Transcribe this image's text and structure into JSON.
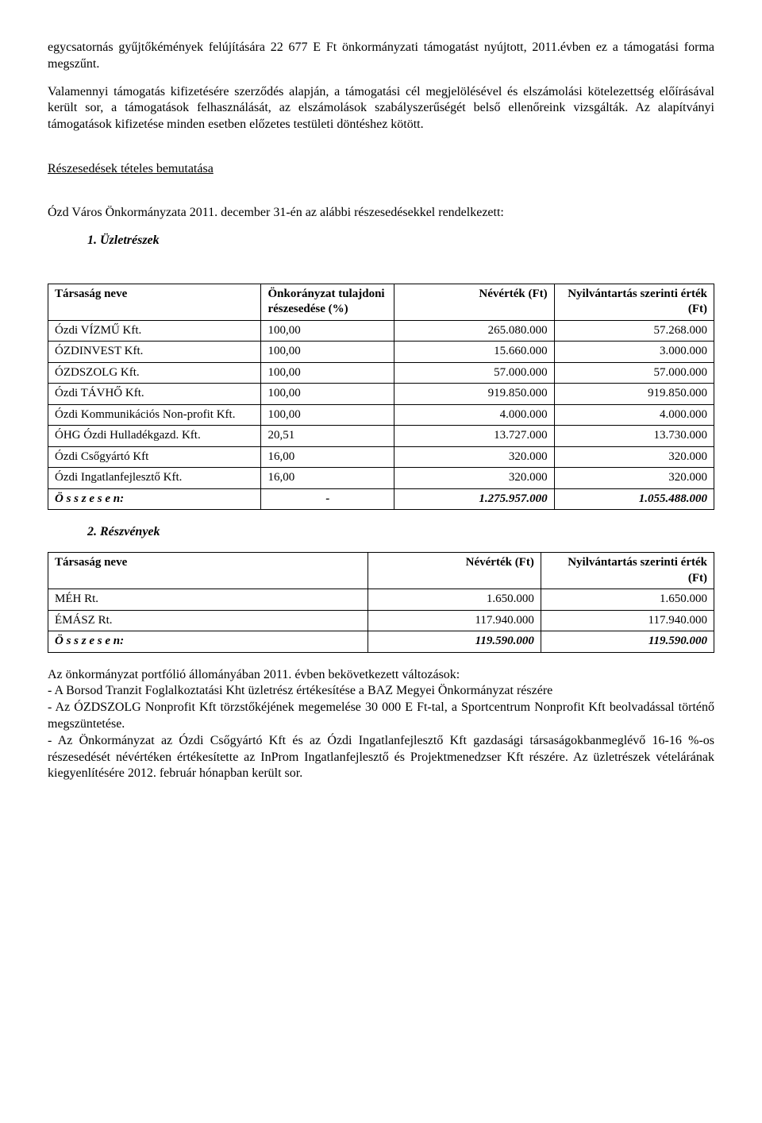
{
  "para1": "egycsatornás gyűjtőkémények felújítására  22 677 E Ft önkormányzati támogatást nyújtott, 2011.évben ez a támogatási forma megszűnt.",
  "para2": "Valamennyi támogatás kifizetésére szerződés alapján, a támogatási cél megjelölésével és elszámolási kötelezettség előírásával került sor, a támogatások felhasználását, az elszámolások szabályszerűségét belső ellenőreink vizsgálták. Az alapítványi támogatások kifizetése minden esetben előzetes testületi döntéshez kötött.",
  "section_title": "Részesedések tételes bemutatása",
  "para3": "Ózd Város Önkormányzata 2011. december 31-én az alábbi részesedésekkel rendelkezett:",
  "list1": {
    "num": "1.",
    "label": "Üzletrészek"
  },
  "table1": {
    "headers": {
      "company": "Társaság neve",
      "share": "Önkorányzat tulajdoni részesedése (%)",
      "nominal": "Névérték (Ft)",
      "book": "Nyilvántartás szerinti érték (Ft)"
    },
    "rows": [
      {
        "company": "Ózdi VÍZMŰ Kft.",
        "share": "100,00",
        "nominal": "265.080.000",
        "book": "57.268.000"
      },
      {
        "company": "ÓZDINVEST Kft.",
        "share": "100,00",
        "nominal": "15.660.000",
        "book": "3.000.000"
      },
      {
        "company": "ÓZDSZOLG Kft.",
        "share": "100,00",
        "nominal": "57.000.000",
        "book": "57.000.000"
      },
      {
        "company": "Ózdi TÁVHŐ Kft.",
        "share": "100,00",
        "nominal": "919.850.000",
        "book": "919.850.000"
      },
      {
        "company": "Ózdi Kommunikációs Non-profit Kft.",
        "share": "100,00",
        "nominal": "4.000.000",
        "book": "4.000.000"
      },
      {
        "company": "ÓHG Ózdi Hulladékgazd. Kft.",
        "share": "20,51",
        "nominal": "13.727.000",
        "book": "13.730.000"
      },
      {
        "company": "Ózdi Csőgyártó Kft",
        "share": "16,00",
        "nominal": "320.000",
        "book": "320.000"
      },
      {
        "company": "Ózdi Ingatlanfejlesztő Kft.",
        "share": "16,00",
        "nominal": "320.000",
        "book": "320.000"
      }
    ],
    "total": {
      "label": "Ö s s z e s e n:",
      "share": "-",
      "nominal": "1.275.957.000",
      "book": "1.055.488.000"
    }
  },
  "list2": {
    "num": "2.",
    "label": "Részvények"
  },
  "table2": {
    "headers": {
      "company": "Társaság neve",
      "nominal": "Névérték (Ft)",
      "book": "Nyilvántartás szerinti érték (Ft)"
    },
    "rows": [
      {
        "company": "MÉH Rt.",
        "nominal": "1.650.000",
        "book": "1.650.000"
      },
      {
        "company": "ÉMÁSZ Rt.",
        "nominal": "117.940.000",
        "book": "117.940.000"
      }
    ],
    "total": {
      "label": "Ö s s z e s e n:",
      "nominal": "119.590.000",
      "book": "119.590.000"
    }
  },
  "para4": "Az önkormányzat portfólió állományában 2011. évben bekövetkezett változások:",
  "bullet1": "- A Borsod Tranzit Foglalkoztatási Kht üzletrész értékesítése a BAZ Megyei Önkormányzat részére",
  "bullet2": "- Az ÓZDSZOLG Nonprofit Kft törzstőkéjének megemelése 30 000 E Ft-tal, a Sportcentrum Nonprofit Kft beolvadással történő megszüntetése.",
  "bullet3": "- Az Önkormányzat az Ózdi Csőgyártó Kft és az Ózdi Ingatlanfejlesztő Kft gazdasági társaságokbanmeglévő 16-16 %-os részesedését névértéken értékesítette az InProm Ingatlanfejlesztő és Projektmenedzser Kft részére. Az üzletrészek vételárának kiegyenlítésére 2012. február hónapban került sor."
}
